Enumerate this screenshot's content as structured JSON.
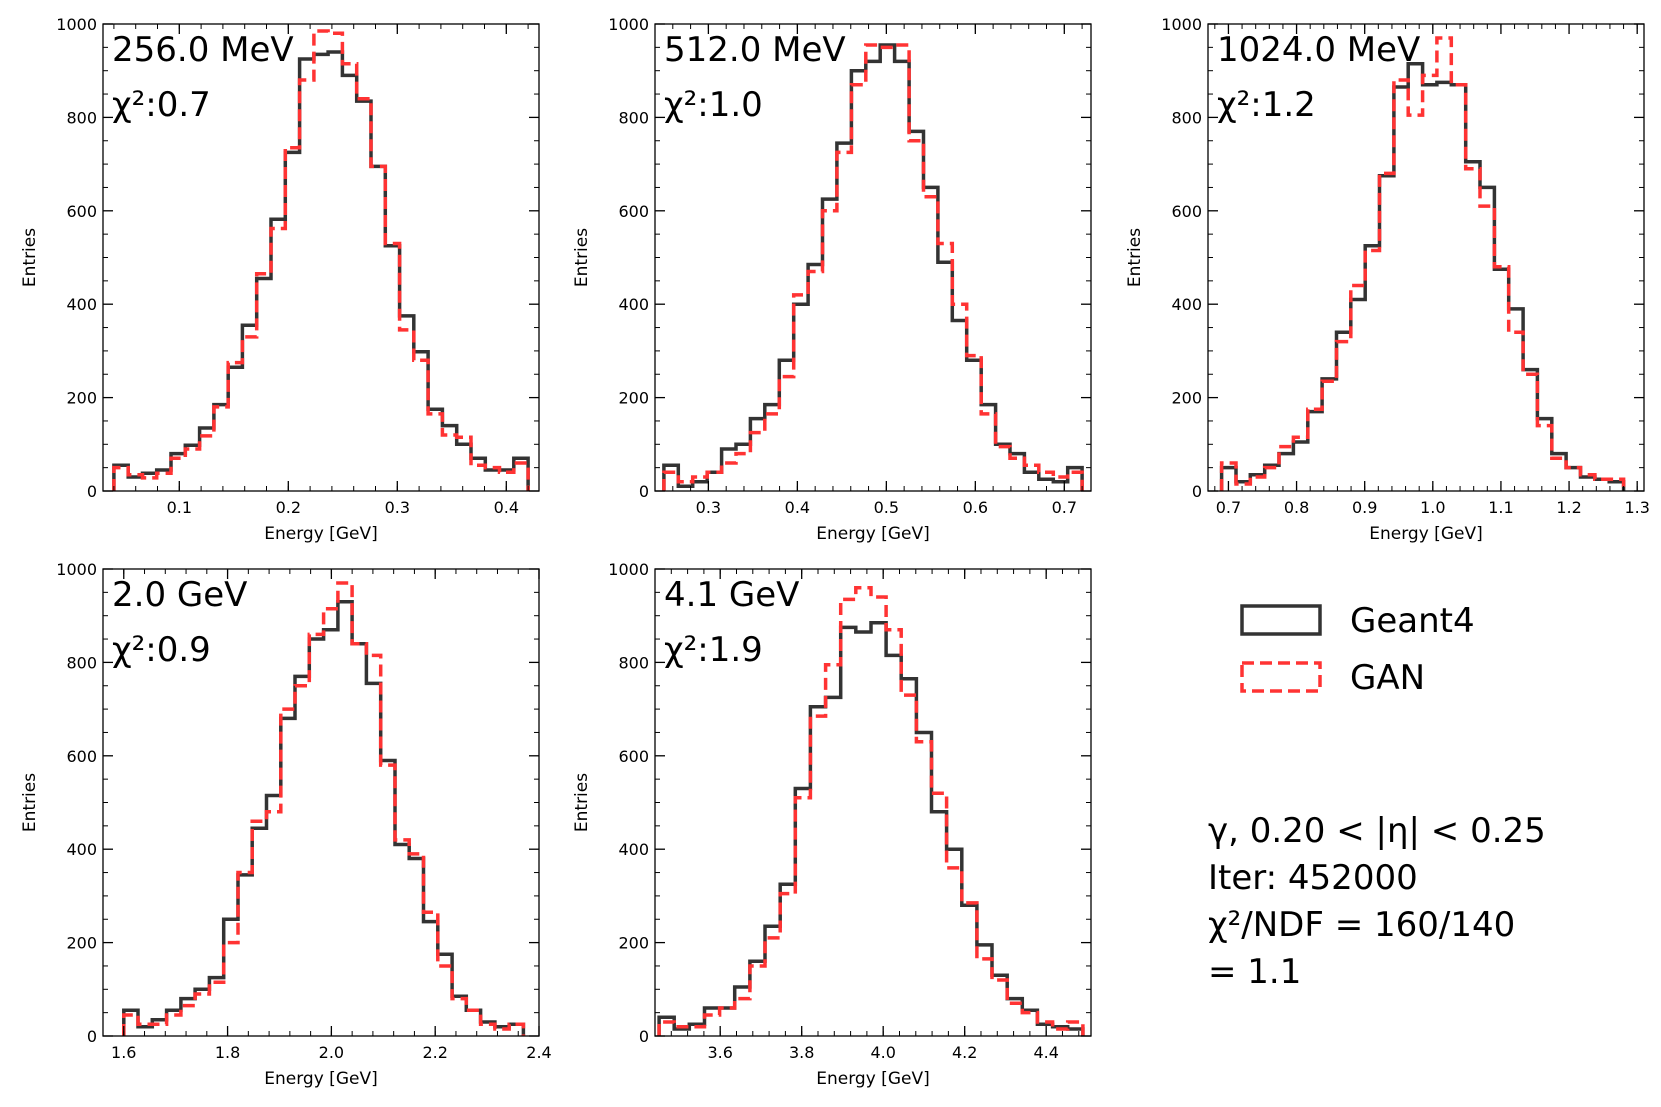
{
  "figure": {
    "legend": [
      {
        "name": "Geant4",
        "color": "#333333",
        "style": "solid"
      },
      {
        "name": "GAN",
        "color": "#ff3333",
        "style": "dashed"
      }
    ],
    "info_lines": [
      "γ, 0.20 < |η| < 0.25",
      "Iter: 452000",
      "χ²/NDF = 160/140",
      "= 1.1"
    ]
  },
  "chart_data": [
    {
      "type": "histogram",
      "title": "256.0 MeV",
      "chi2_label": "χ²:0.7",
      "xlabel": "Energy [GeV]",
      "ylabel": "Entries",
      "xlim": [
        0.03,
        0.43
      ],
      "ylim": [
        0,
        1000
      ],
      "xticks": [
        0.1,
        0.2,
        0.3,
        0.4
      ],
      "xtick_labels": [
        "0.1",
        "0.2",
        "0.3",
        "0.4"
      ],
      "yticks": [
        0,
        200,
        400,
        600,
        800,
        1000
      ],
      "ytick_labels": [
        "0",
        "200",
        "400",
        "600",
        "800",
        "1000"
      ],
      "bin_lo": 0.04,
      "bin_hi": 0.42,
      "series": [
        {
          "name": "Geant4",
          "values": [
            55,
            30,
            38,
            45,
            80,
            98,
            135,
            185,
            265,
            355,
            455,
            582,
            725,
            925,
            935,
            940,
            890,
            835,
            695,
            525,
            375,
            298,
            175,
            140,
            100,
            70,
            45,
            45,
            70
          ]
        },
        {
          "name": "GAN",
          "values": [
            50,
            35,
            28,
            38,
            70,
            90,
            118,
            180,
            275,
            330,
            465,
            562,
            735,
            880,
            985,
            980,
            915,
            840,
            695,
            530,
            345,
            280,
            165,
            120,
            115,
            55,
            50,
            40,
            60
          ]
        }
      ]
    },
    {
      "type": "histogram",
      "title": "512.0 MeV",
      "chi2_label": "χ²:1.0",
      "xlabel": "Energy [GeV]",
      "ylabel": "Entries",
      "xlim": [
        0.24,
        0.73
      ],
      "ylim": [
        0,
        1000
      ],
      "xticks": [
        0.3,
        0.4,
        0.5,
        0.6,
        0.7
      ],
      "xtick_labels": [
        "0.3",
        "0.4",
        "0.5",
        "0.6",
        "0.7"
      ],
      "yticks": [
        0,
        200,
        400,
        600,
        800,
        1000
      ],
      "ytick_labels": [
        "0",
        "200",
        "400",
        "600",
        "800",
        "1000"
      ],
      "bin_lo": 0.25,
      "bin_hi": 0.72,
      "series": [
        {
          "name": "Geant4",
          "values": [
            55,
            10,
            20,
            40,
            90,
            100,
            155,
            185,
            280,
            400,
            485,
            625,
            745,
            900,
            920,
            955,
            920,
            770,
            650,
            490,
            365,
            280,
            185,
            100,
            80,
            40,
            25,
            20,
            50
          ]
        },
        {
          "name": "GAN",
          "values": [
            40,
            20,
            30,
            40,
            60,
            80,
            125,
            165,
            245,
            420,
            470,
            600,
            725,
            870,
            955,
            950,
            955,
            750,
            630,
            530,
            400,
            290,
            165,
            95,
            70,
            55,
            40,
            30,
            40
          ]
        }
      ]
    },
    {
      "type": "histogram",
      "title": "1024.0 MeV",
      "chi2_label": "χ²:1.2",
      "xlabel": "Energy [GeV]",
      "ylabel": "Entries",
      "xlim": [
        0.67,
        1.31
      ],
      "ylim": [
        0,
        1000
      ],
      "xticks": [
        0.7,
        0.8,
        0.9,
        1.0,
        1.1,
        1.2,
        1.3
      ],
      "xtick_labels": [
        "0.7",
        "0.8",
        "0.9",
        "1.0",
        "1.1",
        "1.2",
        "1.3"
      ],
      "yticks": [
        0,
        200,
        400,
        600,
        800,
        1000
      ],
      "ytick_labels": [
        "0",
        "200",
        "400",
        "600",
        "800",
        "1000"
      ],
      "bin_lo": 0.69,
      "bin_hi": 1.28,
      "series": [
        {
          "name": "Geant4",
          "values": [
            50,
            20,
            35,
            55,
            80,
            105,
            170,
            240,
            340,
            410,
            525,
            675,
            865,
            915,
            870,
            875,
            870,
            705,
            650,
            475,
            390,
            260,
            155,
            80,
            50,
            30,
            25,
            20
          ]
        },
        {
          "name": "GAN",
          "values": [
            60,
            15,
            30,
            50,
            95,
            115,
            175,
            235,
            320,
            440,
            515,
            680,
            880,
            805,
            890,
            970,
            870,
            690,
            610,
            480,
            340,
            250,
            140,
            70,
            50,
            35,
            25,
            25
          ]
        }
      ]
    },
    {
      "type": "histogram",
      "title": "2.0 GeV",
      "chi2_label": "χ²:0.9",
      "xlabel": "Energy [GeV]",
      "ylabel": "Entries",
      "xlim": [
        1.56,
        2.4
      ],
      "ylim": [
        0,
        1000
      ],
      "xticks": [
        1.6,
        1.8,
        2.0,
        2.2,
        2.4
      ],
      "xtick_labels": [
        "1.6",
        "1.8",
        "2.0",
        "2.2",
        "2.4"
      ],
      "yticks": [
        0,
        200,
        400,
        600,
        800,
        1000
      ],
      "ytick_labels": [
        "0",
        "200",
        "400",
        "600",
        "800",
        "1000"
      ],
      "bin_lo": 1.6,
      "bin_hi": 2.37,
      "series": [
        {
          "name": "Geant4",
          "values": [
            55,
            20,
            35,
            55,
            80,
            100,
            125,
            250,
            345,
            445,
            515,
            680,
            770,
            850,
            870,
            930,
            840,
            755,
            590,
            410,
            380,
            245,
            175,
            85,
            55,
            30,
            20,
            25
          ]
        },
        {
          "name": "GAN",
          "values": [
            45,
            25,
            25,
            45,
            65,
            90,
            115,
            200,
            350,
            460,
            480,
            700,
            750,
            860,
            915,
            970,
            840,
            815,
            580,
            420,
            390,
            265,
            150,
            80,
            55,
            25,
            15,
            25
          ]
        }
      ]
    },
    {
      "type": "histogram",
      "title": "4.1 GeV",
      "chi2_label": "χ²:1.9",
      "xlabel": "Energy [GeV]",
      "ylabel": "Entries",
      "xlim": [
        3.44,
        4.51
      ],
      "ylim": [
        0,
        1000
      ],
      "xticks": [
        3.6,
        3.8,
        4.0,
        4.2,
        4.4
      ],
      "xtick_labels": [
        "3.6",
        "3.8",
        "4.0",
        "4.2",
        "4.4"
      ],
      "yticks": [
        0,
        200,
        400,
        600,
        800,
        1000
      ],
      "ytick_labels": [
        "0",
        "200",
        "400",
        "600",
        "800",
        "1000"
      ],
      "bin_lo": 3.45,
      "bin_hi": 4.49,
      "series": [
        {
          "name": "Geant4",
          "values": [
            40,
            15,
            25,
            60,
            60,
            105,
            160,
            235,
            325,
            530,
            705,
            725,
            875,
            865,
            885,
            815,
            765,
            650,
            480,
            400,
            280,
            195,
            130,
            80,
            55,
            25,
            20,
            15
          ]
        },
        {
          "name": "GAN",
          "values": [
            30,
            20,
            20,
            45,
            60,
            80,
            150,
            210,
            305,
            510,
            685,
            795,
            935,
            960,
            940,
            870,
            730,
            630,
            520,
            360,
            285,
            165,
            120,
            70,
            50,
            30,
            15,
            30
          ]
        }
      ]
    }
  ]
}
